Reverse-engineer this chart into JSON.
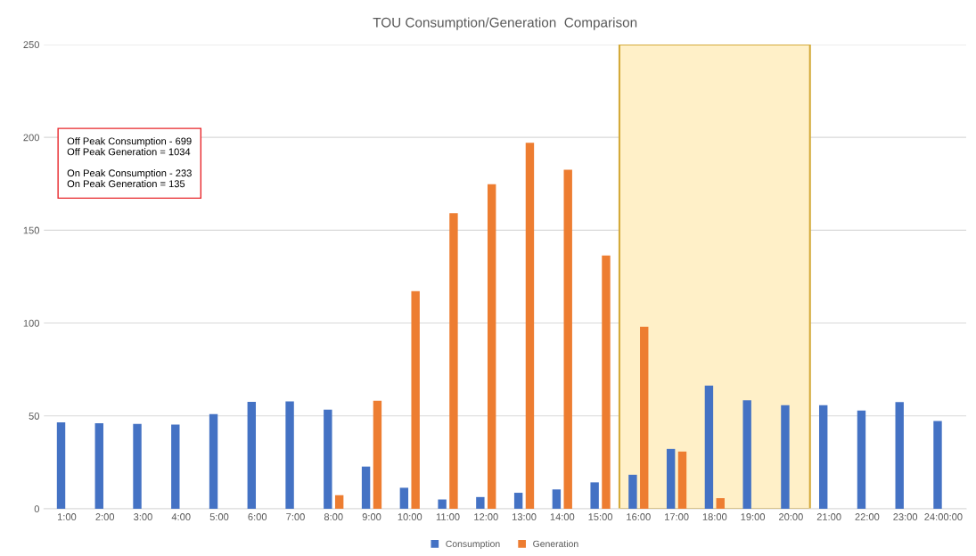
{
  "chart_data": {
    "type": "bar",
    "title": "TOU Consumption/Generation  Comparison",
    "categories": [
      "1:00",
      "2:00",
      "3:00",
      "4:00",
      "5:00",
      "6:00",
      "7:00",
      "8:00",
      "9:00",
      "10:00",
      "11:00",
      "12:00",
      "13:00",
      "14:00",
      "15:00",
      "16:00",
      "17:00",
      "18:00",
      "19:00",
      "20:00",
      "21:00",
      "22:00",
      "23:00",
      "24:00:00"
    ],
    "series": [
      {
        "name": "Consumption",
        "color": "#4472c4",
        "values": [
          46.5,
          46.0,
          45.7,
          45.3,
          51.0,
          57.5,
          57.8,
          53.3,
          22.7,
          11.3,
          5.0,
          6.3,
          8.6,
          10.4,
          14.2,
          18.3,
          32.2,
          66.3,
          58.4,
          55.8,
          55.8,
          52.9,
          57.4,
          47.3
        ]
      },
      {
        "name": "Generation",
        "color": "#ed7d31",
        "values": [
          null,
          null,
          null,
          null,
          null,
          null,
          null,
          7.3,
          58.2,
          117.2,
          159.2,
          174.8,
          197.1,
          182.6,
          136.4,
          98.0,
          30.8,
          5.7,
          null,
          null,
          null,
          null,
          null,
          null
        ]
      }
    ],
    "ylim": [
      0,
      250
    ],
    "yticks": [
      0,
      50,
      100,
      150,
      200,
      250
    ],
    "grid": "y",
    "legend": "bottom",
    "bands": [
      {
        "axis": "x",
        "from": "16:00",
        "to": "20:00",
        "color": "#fff0c8"
      }
    ],
    "annotations": [
      "Off Peak Consumption - 699\nOff Peak Generation = 1034\n\nOn Peak Consumption - 233\nOn Peak Generation = 135"
    ]
  }
}
